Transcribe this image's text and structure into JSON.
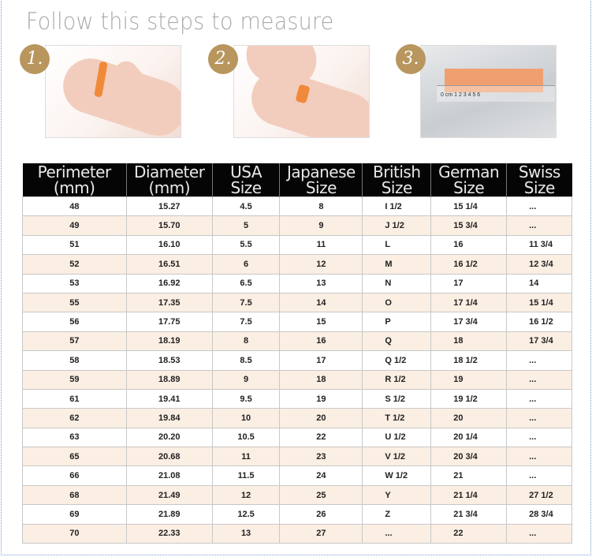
{
  "title": "Follow this steps to measure",
  "steps": [
    {
      "number": "1.",
      "image": "wrap-paper-around-finger-photo"
    },
    {
      "number": "2.",
      "image": "mark-paper-on-finger-photo"
    },
    {
      "number": "3.",
      "image": "measure-paper-with-ruler-photo",
      "ruler_labels": "0 cm 1 2 3 4 5 6"
    }
  ],
  "colors": {
    "badge": "#b8965e",
    "header_bg": "#050505",
    "alt_row": "#fbeee3"
  },
  "table": {
    "headers": [
      {
        "line1": "Perimeter",
        "line2": "(mm)"
      },
      {
        "line1": "Diameter",
        "line2": "(mm)"
      },
      {
        "line1": "USA",
        "line2": "Size"
      },
      {
        "line1": "Japanese",
        "line2": "Size"
      },
      {
        "line1": "British",
        "line2": "Size"
      },
      {
        "line1": "German",
        "line2": "Size"
      },
      {
        "line1": "Swiss",
        "line2": "Size"
      }
    ],
    "rows": [
      [
        "48",
        "15.27",
        "4.5",
        "8",
        "I 1/2",
        "15 1/4",
        "..."
      ],
      [
        "49",
        "15.70",
        "5",
        "9",
        "J 1/2",
        "15 3/4",
        "..."
      ],
      [
        "51",
        "16.10",
        "5.5",
        "11",
        "L",
        "16",
        "11 3/4"
      ],
      [
        "52",
        "16.51",
        "6",
        "12",
        "M",
        "16 1/2",
        "12 3/4"
      ],
      [
        "53",
        "16.92",
        "6.5",
        "13",
        "N",
        "17",
        "14"
      ],
      [
        "55",
        "17.35",
        "7.5",
        "14",
        "O",
        "17 1/4",
        "15 1/4"
      ],
      [
        "56",
        "17.75",
        "7.5",
        "15",
        "P",
        "17 3/4",
        "16 1/2"
      ],
      [
        "57",
        "18.19",
        "8",
        "16",
        "Q",
        "18",
        "17 3/4"
      ],
      [
        "58",
        "18.53",
        "8.5",
        "17",
        "Q 1/2",
        "18 1/2",
        "..."
      ],
      [
        "59",
        "18.89",
        "9",
        "18",
        "R 1/2",
        "19",
        "..."
      ],
      [
        "61",
        "19.41",
        "9.5",
        "19",
        "S 1/2",
        "19 1/2",
        "..."
      ],
      [
        "62",
        "19.84",
        "10",
        "20",
        "T 1/2",
        "20",
        "..."
      ],
      [
        "63",
        "20.20",
        "10.5",
        "22",
        "U 1/2",
        "20 1/4",
        "..."
      ],
      [
        "65",
        "20.68",
        "11",
        "23",
        "V 1/2",
        "20 3/4",
        "..."
      ],
      [
        "66",
        "21.08",
        "11.5",
        "24",
        "W 1/2",
        "21",
        "..."
      ],
      [
        "68",
        "21.49",
        "12",
        "25",
        "Y",
        "21 1/4",
        "27 1/2"
      ],
      [
        "69",
        "21.89",
        "12.5",
        "26",
        "Z",
        "21 3/4",
        "28 3/4"
      ],
      [
        "70",
        "22.33",
        "13",
        "27",
        "...",
        "22",
        "..."
      ]
    ]
  }
}
